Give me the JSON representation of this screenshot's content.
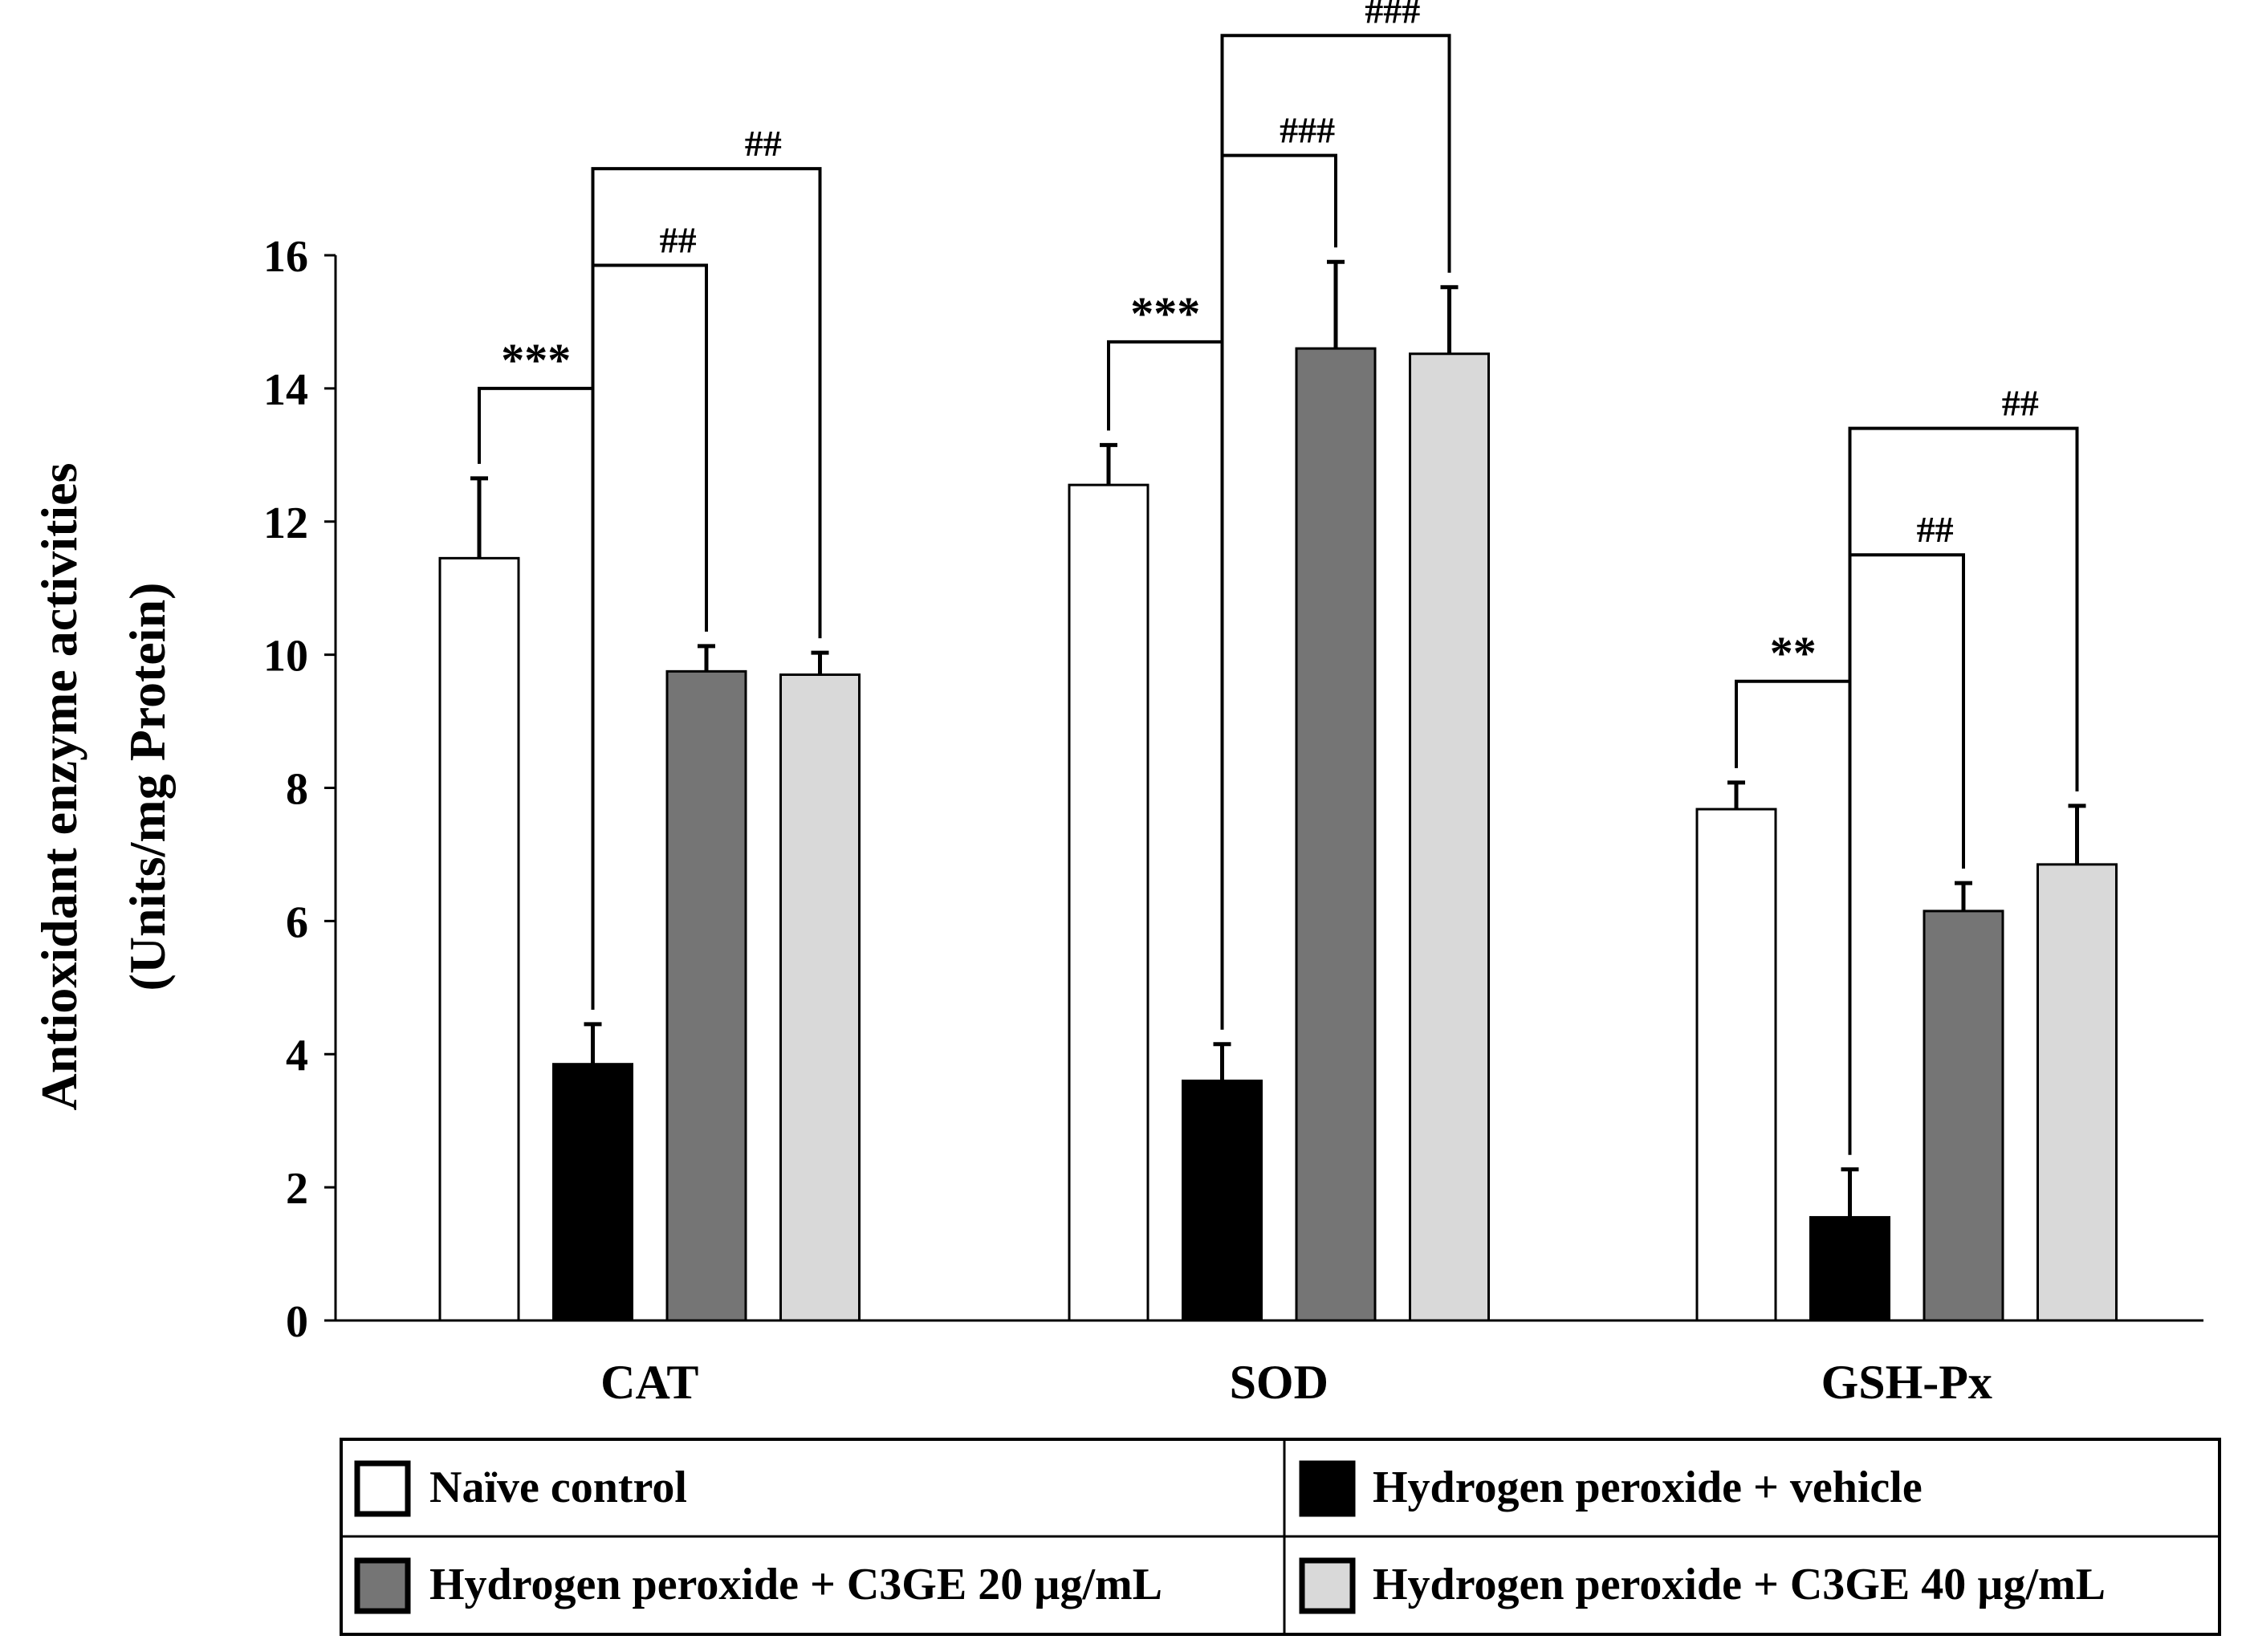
{
  "chart_data": {
    "type": "bar",
    "ylabel_line1": "Antioxidant enzyme activities",
    "ylabel_line2": "(Units/mg Protein)",
    "ylim": [
      0,
      16
    ],
    "yticks": [
      "0",
      "2",
      "4",
      "6",
      "8",
      "10",
      "12",
      "14",
      "16"
    ],
    "grid": false,
    "legend_position": "bottom",
    "categories": [
      "CAT",
      "SOD",
      "GSH-Px"
    ],
    "series": [
      {
        "name": "Naïve control",
        "color": "#ffffff",
        "values": [
          11.45,
          12.55,
          7.68
        ],
        "errors": [
          1.2,
          0.6,
          0.4
        ]
      },
      {
        "name": "Hydrogen peroxide + vehicle",
        "color": "#000000",
        "values": [
          3.85,
          3.6,
          1.55
        ],
        "errors": [
          0.6,
          0.55,
          0.72
        ]
      },
      {
        "name": "Hydrogen peroxide + C3GE 20 µg/mL",
        "color": "#757575",
        "values": [
          9.75,
          14.6,
          6.15
        ],
        "errors": [
          0.38,
          1.3,
          0.42
        ]
      },
      {
        "name": "Hydrogen peroxide + C3GE 40 µg/mL",
        "color": "#d9d9d9",
        "values": [
          9.7,
          14.52,
          6.85
        ],
        "errors": [
          0.33,
          1.0,
          0.88
        ]
      }
    ],
    "annotations": [
      {
        "category": 0,
        "from": 0,
        "to": 1,
        "text": "***",
        "level": 14.0
      },
      {
        "category": 0,
        "from": 1,
        "to": 2,
        "text": "##",
        "level": 15.85
      },
      {
        "category": 0,
        "from": 1,
        "to": 3,
        "text": "##",
        "level": 17.3
      },
      {
        "category": 1,
        "from": 0,
        "to": 1,
        "text": "***",
        "level": 14.7
      },
      {
        "category": 1,
        "from": 1,
        "to": 2,
        "text": "###",
        "level": 17.5
      },
      {
        "category": 1,
        "from": 1,
        "to": 3,
        "text": "###",
        "level": 19.3
      },
      {
        "category": 2,
        "from": 0,
        "to": 1,
        "text": "**",
        "level": 9.6
      },
      {
        "category": 2,
        "from": 1,
        "to": 2,
        "text": "##",
        "level": 11.5
      },
      {
        "category": 2,
        "from": 1,
        "to": 3,
        "text": "##",
        "level": 13.4
      }
    ]
  }
}
